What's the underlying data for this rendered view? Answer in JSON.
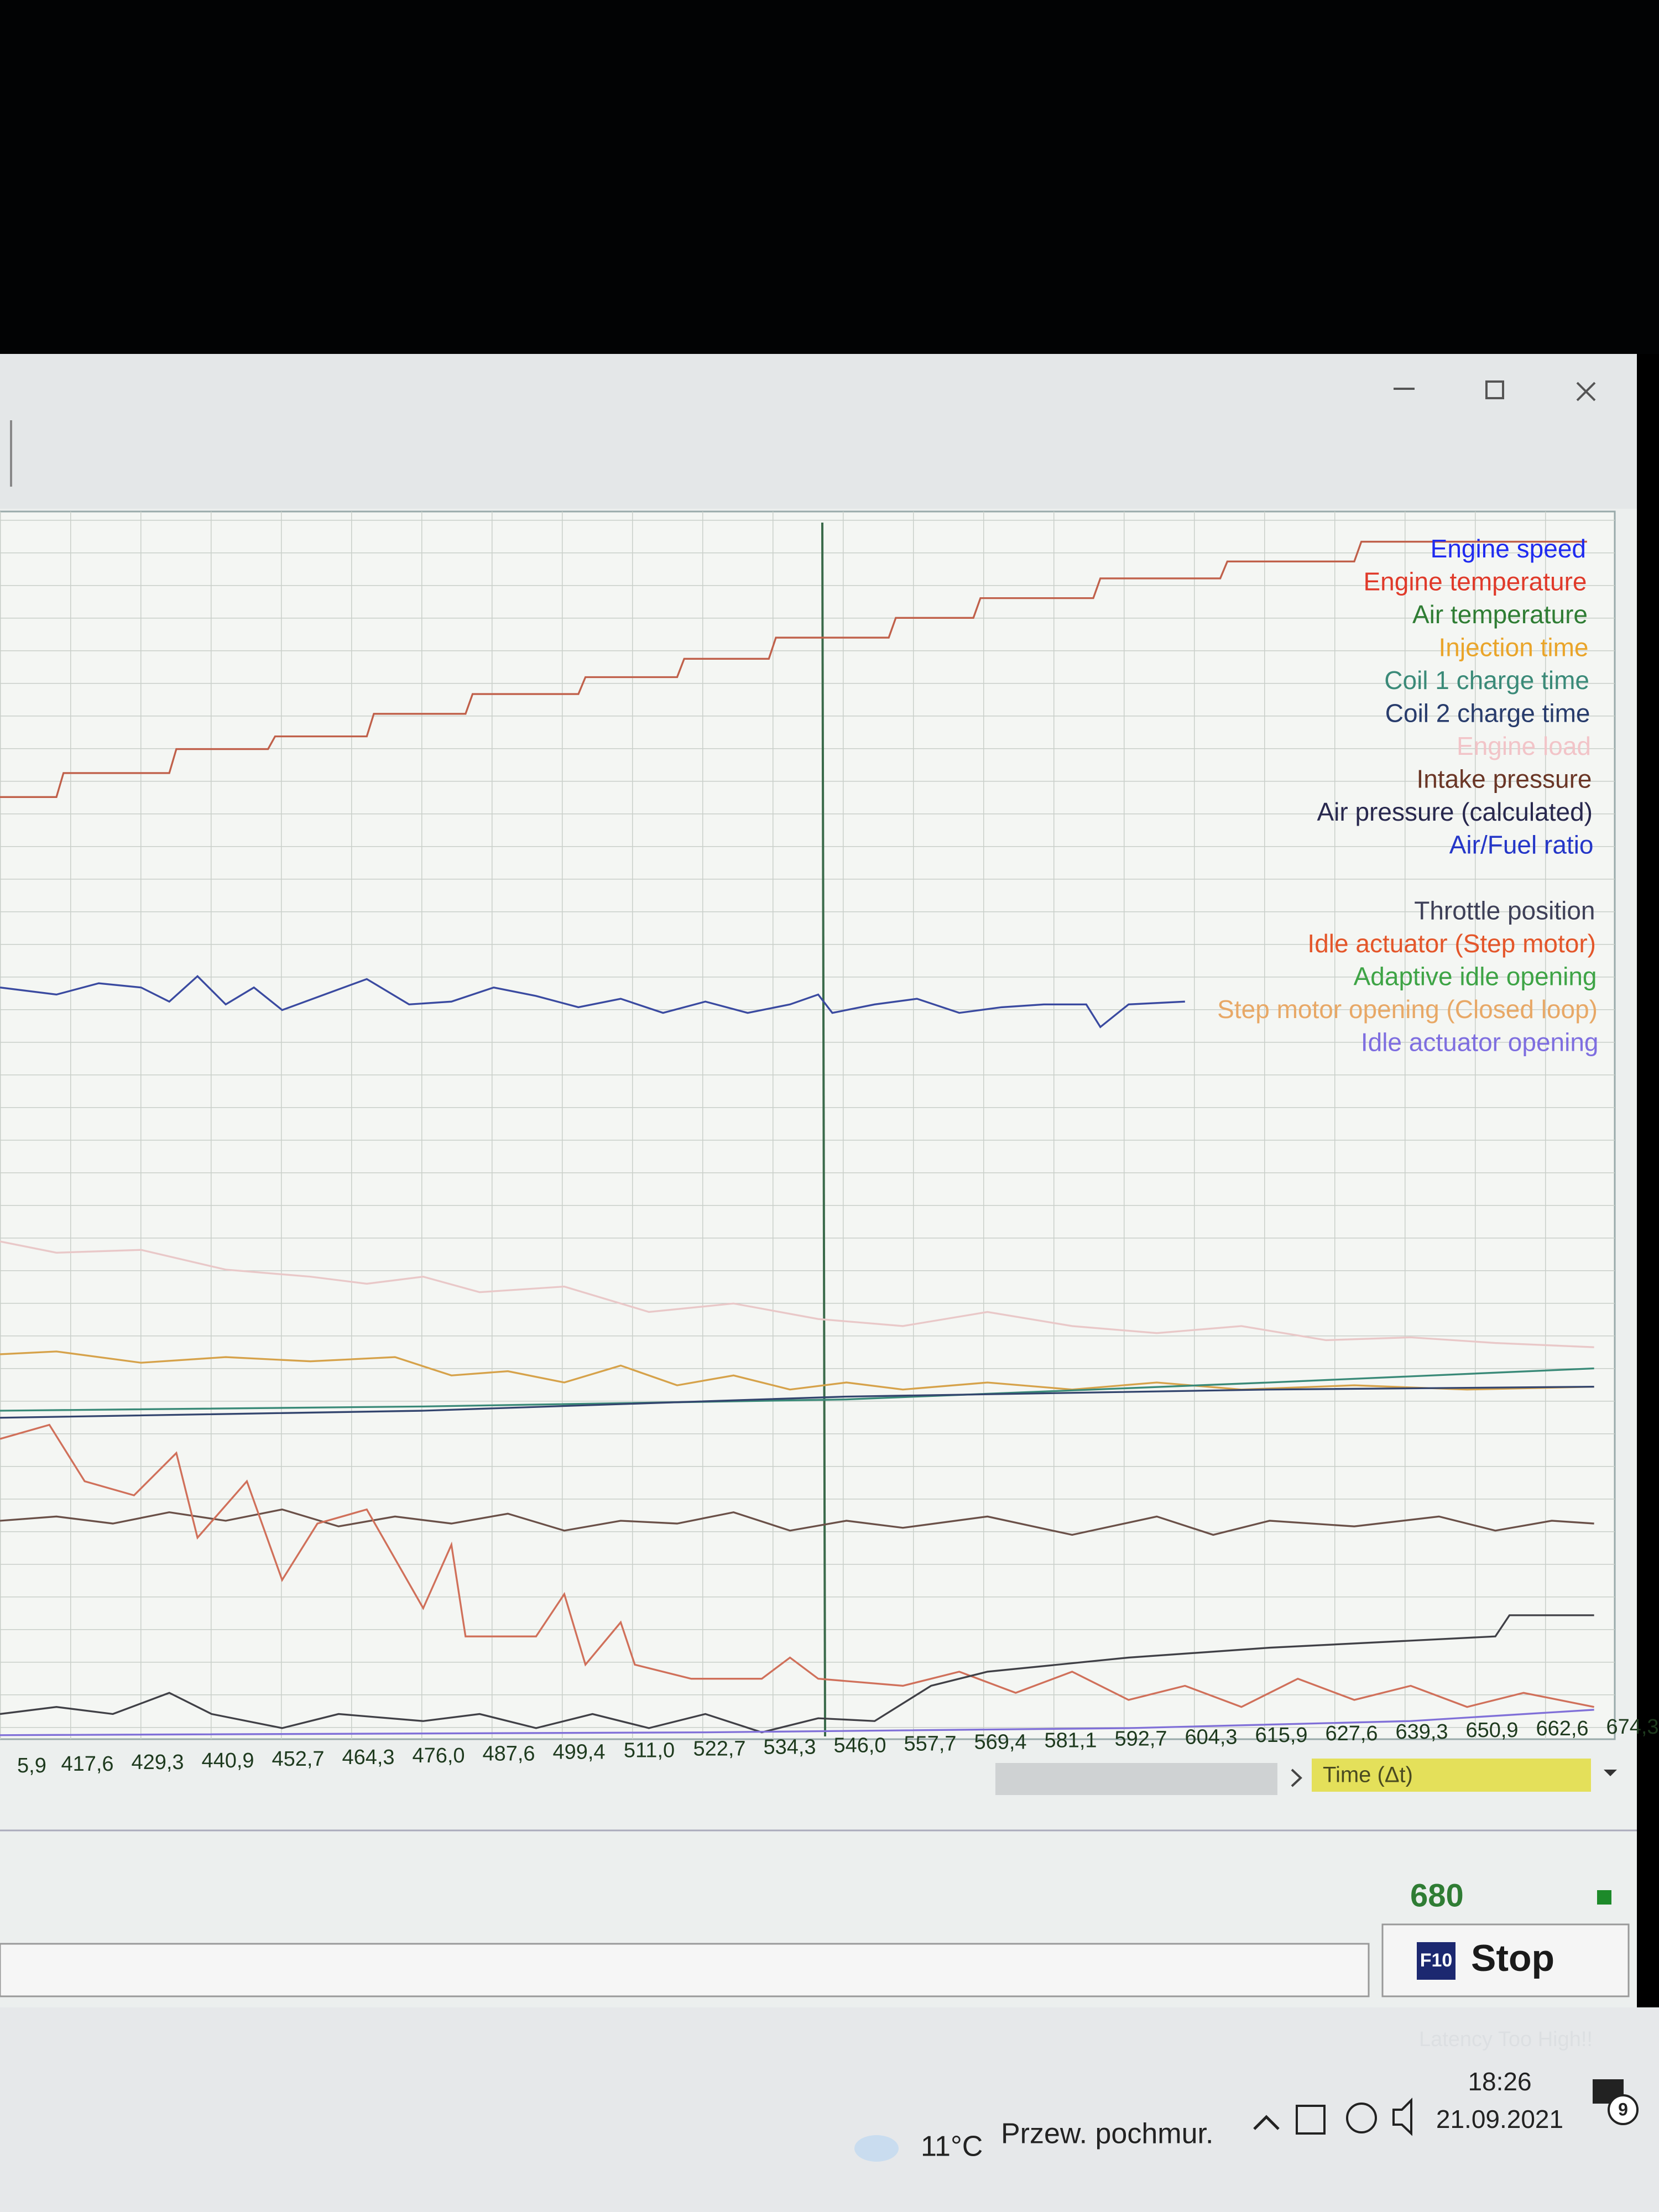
{
  "window": {
    "legend": [
      {
        "name": "Engine speed",
        "color": "#1f2bf0"
      },
      {
        "name": "Engine temperature",
        "color": "#e03a2a"
      },
      {
        "name": "Air temperature",
        "color": "#2f7d34"
      },
      {
        "name": "Injection time",
        "color": "#eaa52a"
      },
      {
        "name": "Coil 1 charge time",
        "color": "#3a8a78"
      },
      {
        "name": "Coil 2 charge time",
        "color": "#283c6c"
      },
      {
        "name": "Engine load",
        "color": "#f2c4c8"
      },
      {
        "name": "Intake pressure",
        "color": "#6a3626"
      },
      {
        "name": "Air pressure (calculated)",
        "color": "#28284e"
      },
      {
        "name": "Air/Fuel ratio",
        "color": "#2436c8"
      },
      {
        "name": "Throttle position",
        "color": "#3e4058"
      },
      {
        "name": "Idle actuator (Step motor)",
        "color": "#e4562a"
      },
      {
        "name": "Adaptive idle opening",
        "color": "#3ea446"
      },
      {
        "name": "Step motor opening (Closed loop)",
        "color": "#e8a866"
      },
      {
        "name": "Idle actuator opening",
        "color": "#7e6ee0"
      }
    ],
    "x_labels": [
      "5,9",
      "417,6",
      "429,3",
      "440,9",
      "452,7",
      "464,3",
      "476,0",
      "487,6",
      "499,4",
      "511,0",
      "522,7",
      "534,3",
      "546,0",
      "557,7",
      "569,4",
      "581,1",
      "592,7",
      "604,3",
      "615,9",
      "627,6",
      "639,3",
      "650,9",
      "662,6",
      "674,3"
    ],
    "axis_name": "Time (Δt)",
    "counter": "680",
    "button_key": "F10",
    "button_label": "Stop",
    "warning": "Latency Too High!!",
    "taskbar": {
      "temperature": "11°C",
      "weather": "Przew. pochmur.",
      "time": "18:26",
      "date": "21.09.2021",
      "notifications": "9"
    }
  }
}
